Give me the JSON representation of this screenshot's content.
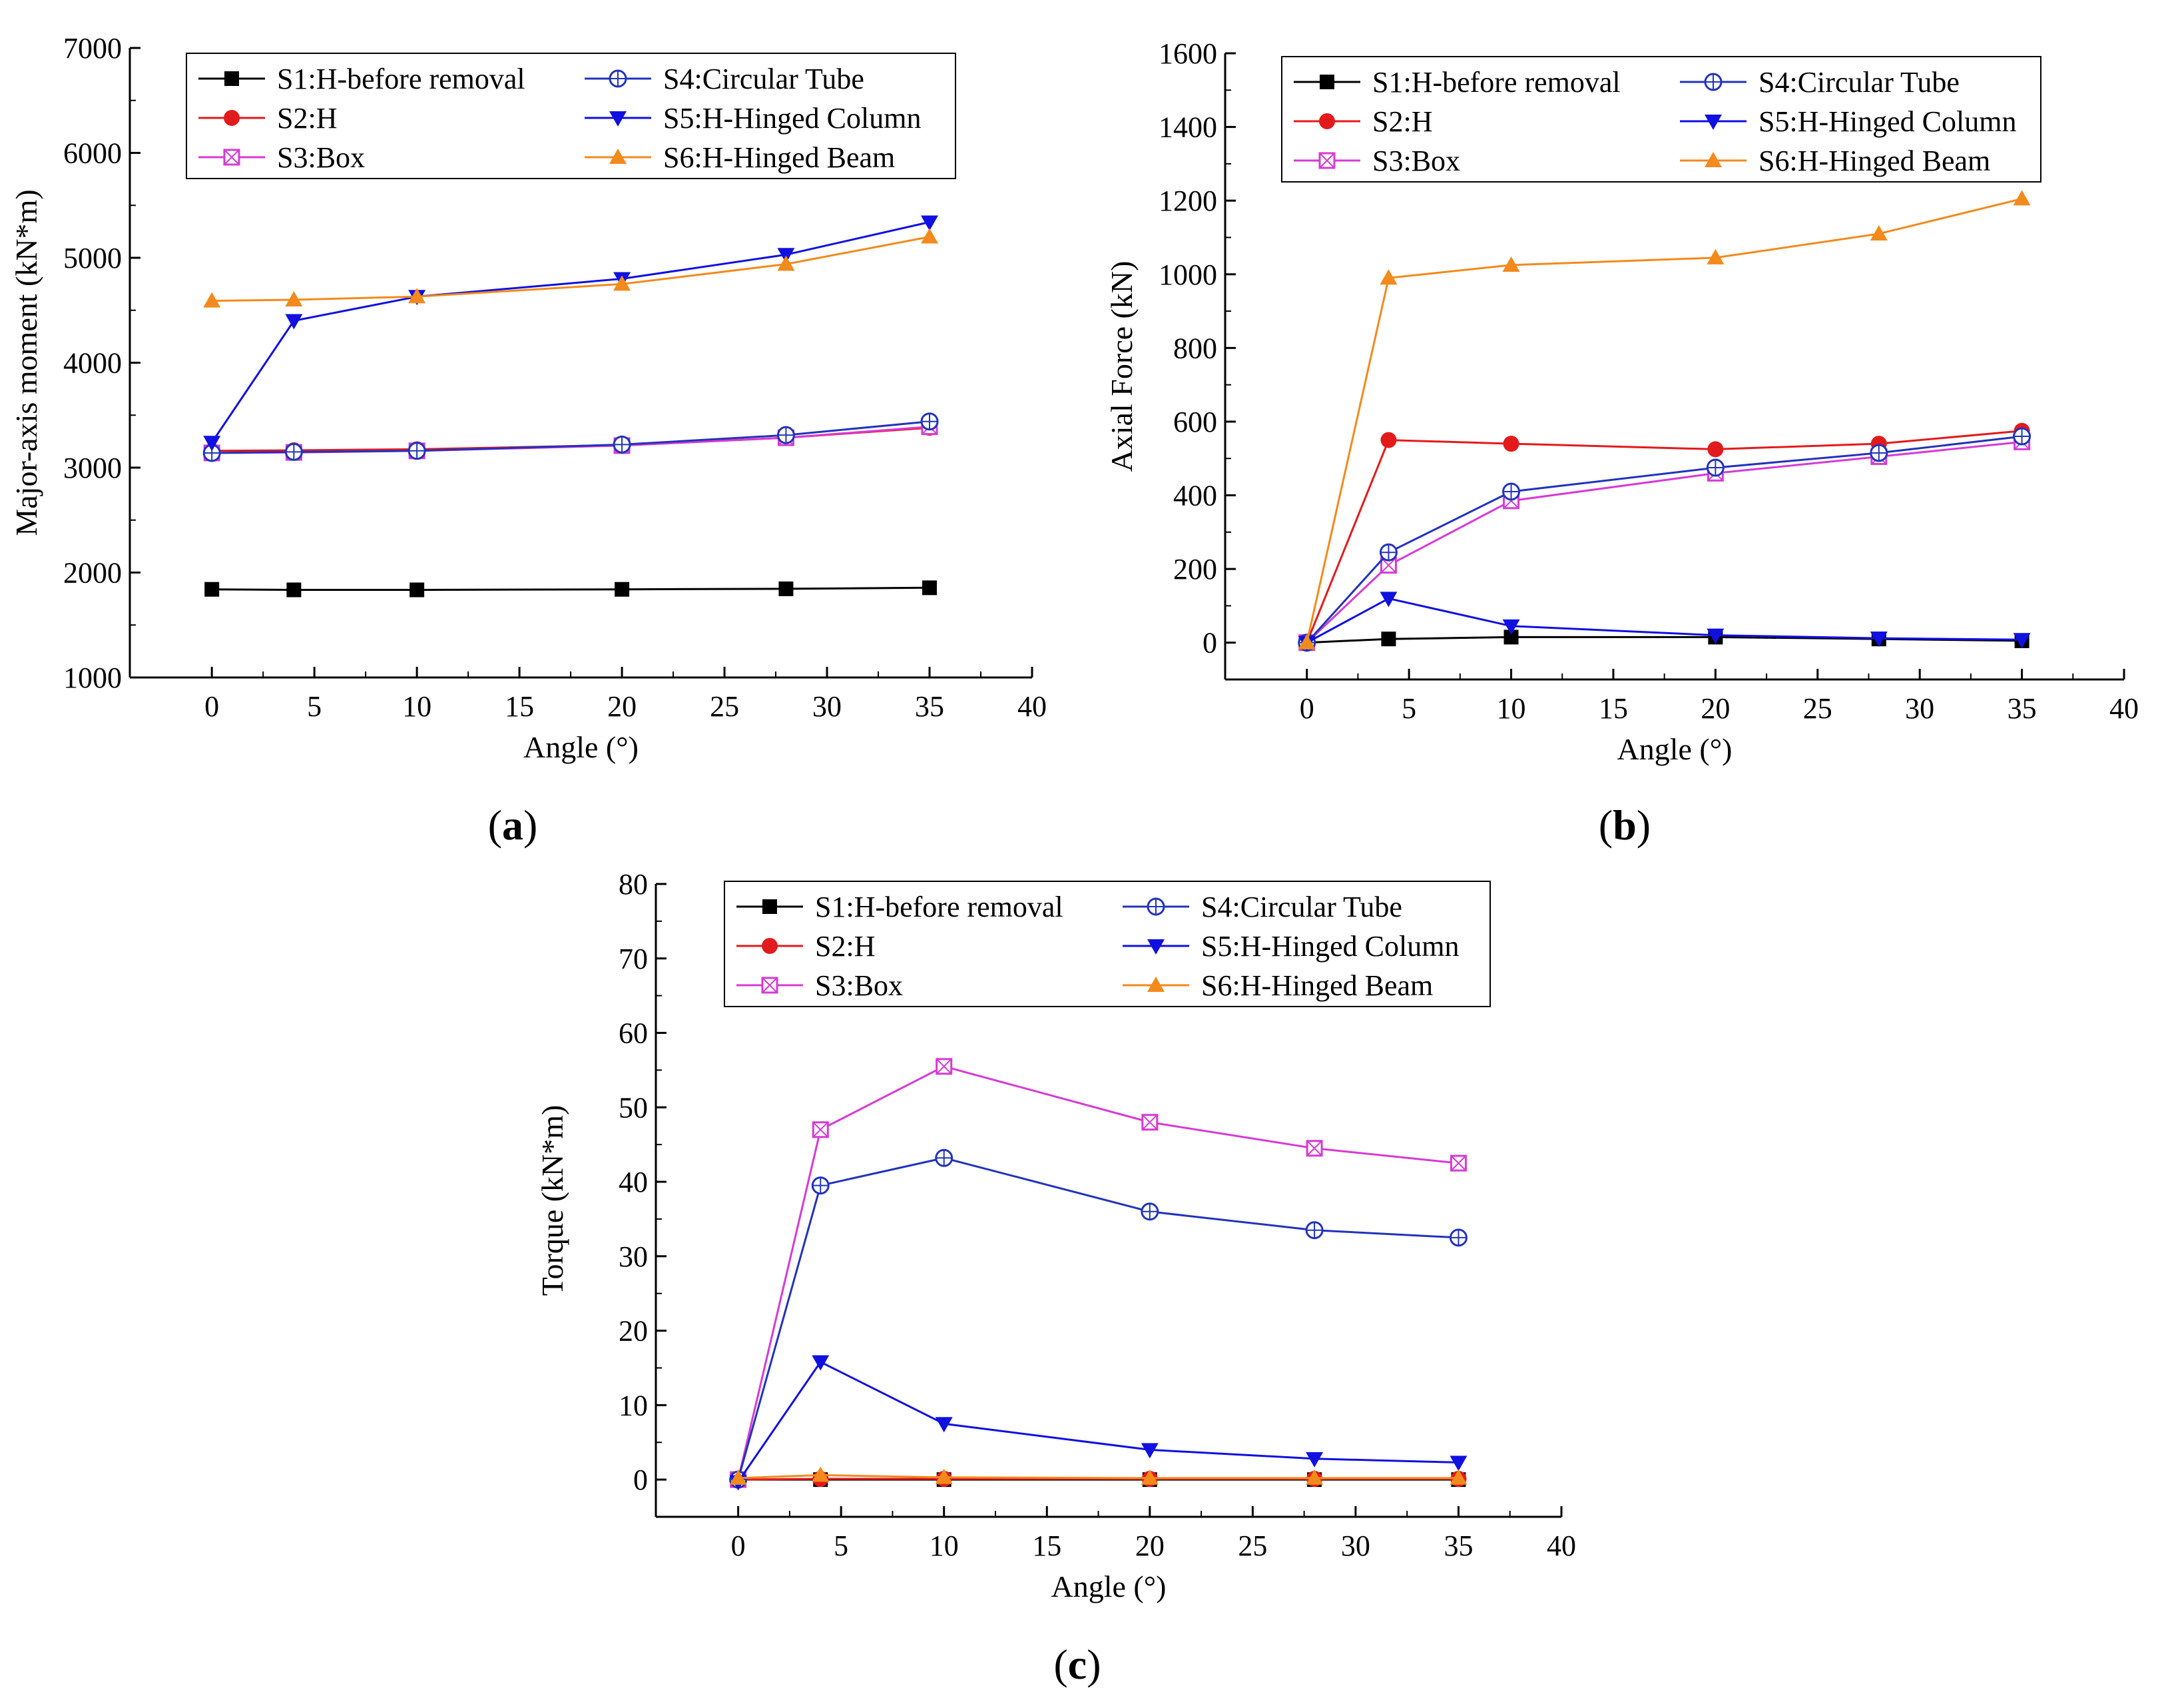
{
  "figure": {
    "styles": {
      "S1": {
        "color": "#000000",
        "marker": "square",
        "markerColor": "#000000"
      },
      "S2": {
        "color": "#e31a1c",
        "marker": "circle",
        "markerColor": "#e31a1c"
      },
      "S3": {
        "color": "#d63ad6",
        "marker": "square-open-x",
        "markerColor": "#d63ad6"
      },
      "S4": {
        "color": "#2233bb",
        "marker": "circle-plus",
        "markerColor": "#2233bb"
      },
      "S5": {
        "color": "#1010e0",
        "marker": "triangle-down",
        "markerColor": "#1010e0"
      },
      "S6": {
        "color": "#f28a1c",
        "marker": "triangle-up",
        "markerColor": "#f28a1c"
      }
    }
  },
  "chart_data": [
    {
      "id": "a",
      "type": "line",
      "panel_label": "a",
      "xlabel": "Angle (°)",
      "ylabel": "Major-axis moment (kN*m)",
      "xlim": [
        -4,
        40
      ],
      "ylim": [
        1000,
        7000
      ],
      "xticks": [
        0,
        5,
        10,
        15,
        20,
        25,
        30,
        35,
        40
      ],
      "yticks": [
        1000,
        2000,
        3000,
        4000,
        5000,
        6000,
        7000
      ],
      "x": [
        0,
        4,
        10,
        20,
        28,
        35
      ],
      "legend_position": "top",
      "series": [
        {
          "key": "S1",
          "name": "S1:H-before removal",
          "values": [
            1840,
            1835,
            1835,
            1840,
            1845,
            1855
          ]
        },
        {
          "key": "S2",
          "name": "S2:H",
          "values": [
            3160,
            3165,
            3175,
            3215,
            3285,
            3380
          ]
        },
        {
          "key": "S3",
          "name": "S3:Box",
          "values": [
            3140,
            3145,
            3160,
            3210,
            3285,
            3390
          ]
        },
        {
          "key": "S4",
          "name": "S4:Circular Tube",
          "values": [
            3140,
            3150,
            3160,
            3220,
            3310,
            3440
          ]
        },
        {
          "key": "S5",
          "name": "S5:H-Hinged Column",
          "values": [
            3240,
            4400,
            4630,
            4800,
            5030,
            5340
          ]
        },
        {
          "key": "S6",
          "name": "S6:H-Hinged Beam",
          "values": [
            4590,
            4600,
            4630,
            4750,
            4940,
            5200
          ]
        }
      ]
    },
    {
      "id": "b",
      "type": "line",
      "panel_label": "b",
      "xlabel": "Angle (°)",
      "ylabel": "Axial Force (kN)",
      "xlim": [
        -4,
        40
      ],
      "ylim": [
        -100,
        1600
      ],
      "xticks": [
        0,
        5,
        10,
        15,
        20,
        25,
        30,
        35,
        40
      ],
      "yticks": [
        0,
        200,
        400,
        600,
        800,
        1000,
        1200,
        1400,
        1600
      ],
      "x": [
        0,
        4,
        10,
        20,
        28,
        35
      ],
      "legend_position": "top",
      "series": [
        {
          "key": "S1",
          "name": "S1:H-before removal",
          "values": [
            0,
            10,
            15,
            15,
            10,
            5
          ]
        },
        {
          "key": "S2",
          "name": "S2:H",
          "values": [
            0,
            550,
            540,
            525,
            540,
            575
          ]
        },
        {
          "key": "S3",
          "name": "S3:Box",
          "values": [
            0,
            210,
            385,
            460,
            505,
            545
          ]
        },
        {
          "key": "S4",
          "name": "S4:Circular Tube",
          "values": [
            0,
            245,
            410,
            475,
            515,
            560
          ]
        },
        {
          "key": "S5",
          "name": "S5:H-Hinged Column",
          "values": [
            0,
            120,
            45,
            20,
            12,
            8
          ]
        },
        {
          "key": "S6",
          "name": "S6:H-Hinged Beam",
          "values": [
            0,
            990,
            1025,
            1045,
            1110,
            1205
          ]
        }
      ]
    },
    {
      "id": "c",
      "type": "line",
      "panel_label": "c",
      "xlabel": "Angle (°)",
      "ylabel": "Torque (kN*m)",
      "xlim": [
        -4,
        40
      ],
      "ylim": [
        -5,
        80
      ],
      "xticks": [
        0,
        5,
        10,
        15,
        20,
        25,
        30,
        35,
        40
      ],
      "yticks": [
        0,
        10,
        20,
        30,
        40,
        50,
        60,
        70,
        80
      ],
      "x": [
        0,
        4,
        10,
        20,
        28,
        35
      ],
      "legend_position": "top",
      "series": [
        {
          "key": "S1",
          "name": "S1:H-before removal",
          "values": [
            0,
            0,
            0,
            0,
            0,
            0
          ]
        },
        {
          "key": "S2",
          "name": "S2:H",
          "values": [
            0,
            0.1,
            0.1,
            0.1,
            0.1,
            0.1
          ]
        },
        {
          "key": "S3",
          "name": "S3:Box",
          "values": [
            0,
            47,
            55.5,
            48,
            44.5,
            42.5
          ]
        },
        {
          "key": "S4",
          "name": "S4:Circular Tube",
          "values": [
            0,
            39.5,
            43.2,
            36,
            33.5,
            32.5
          ]
        },
        {
          "key": "S5",
          "name": "S5:H-Hinged Column",
          "values": [
            -0.3,
            15.8,
            7.5,
            4,
            2.8,
            2.3
          ]
        },
        {
          "key": "S6",
          "name": "S6:H-Hinged Beam",
          "values": [
            0.2,
            0.6,
            0.3,
            0.2,
            0.2,
            0.2
          ]
        }
      ]
    }
  ]
}
